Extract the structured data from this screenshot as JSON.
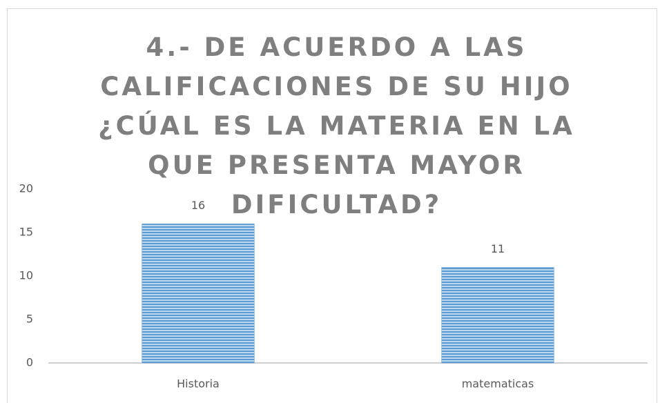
{
  "chart_data": {
    "type": "bar",
    "title": "4.- DE ACUERDO A LAS CALIFICACIONES DE SU HIJO ¿CÚAL ES LA MATERIA EN LA QUE PRESENTA MAYOR DIFICULTAD?",
    "categories": [
      "Historia",
      "matematicas"
    ],
    "values": [
      16,
      11
    ],
    "color": "#5b9bd5",
    "ylim": [
      0,
      20
    ],
    "yticks": [
      0,
      5,
      10,
      15,
      20
    ],
    "grid": false
  }
}
